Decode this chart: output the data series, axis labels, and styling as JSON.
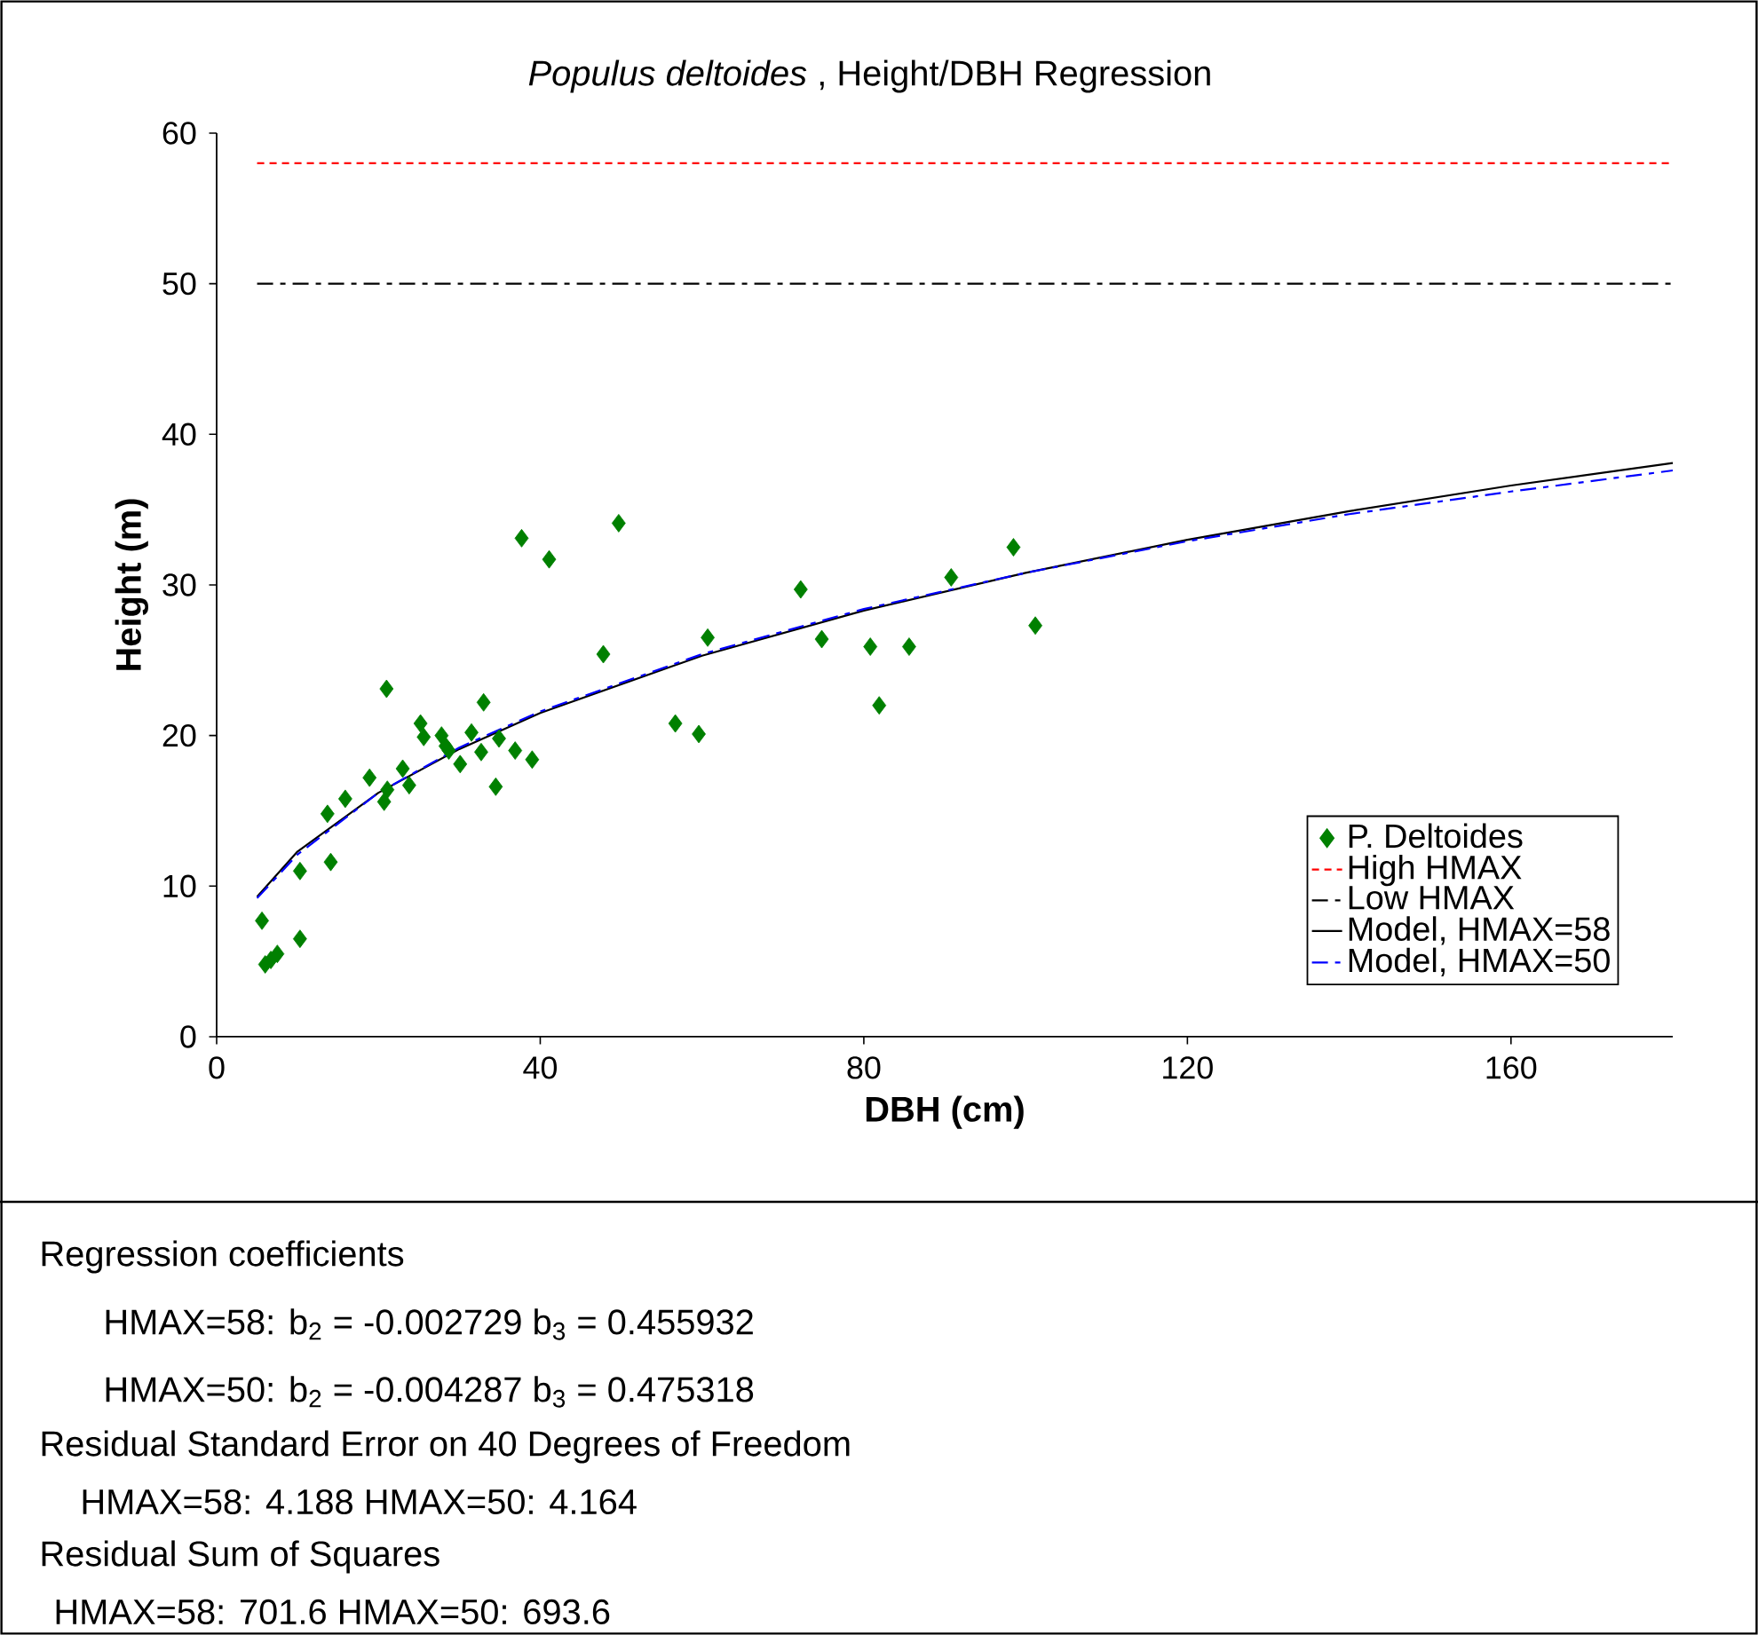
{
  "chart_data": {
    "type": "scatter",
    "title": "*Populus deltoides* , Height/DBH Regression",
    "xlabel": "DBH (cm)",
    "ylabel": "Height (m)",
    "xlim": [
      0,
      180
    ],
    "ylim": [
      0,
      60
    ],
    "xticks": [
      0,
      40,
      80,
      120,
      160
    ],
    "yticks": [
      0,
      10,
      20,
      30,
      40,
      50,
      60
    ],
    "grid": false,
    "legend": "bottom right",
    "series": [
      {
        "name": "P. Deltoides",
        "type": "scatter",
        "marker": "diamond",
        "color": "#008000",
        "x": [
          5.6,
          6.0,
          6.7,
          7.5,
          10.3,
          10.3,
          14.1,
          13.7,
          15.9,
          18.9,
          21.0,
          20.7,
          21.1,
          23.0,
          23.8,
          25.2,
          25.6,
          27.8,
          28.3,
          28.7,
          30.1,
          31.5,
          32.7,
          33.0,
          34.5,
          34.9,
          36.9,
          39.0,
          37.7,
          41.1,
          49.7,
          47.8,
          60.7,
          56.7,
          59.6,
          72.2,
          74.8,
          80.8,
          81.9,
          85.6,
          90.8,
          98.5,
          101.2
        ],
        "values": [
          7.7,
          4.8,
          5.1,
          5.5,
          6.5,
          11.0,
          11.6,
          14.8,
          15.8,
          17.2,
          23.1,
          15.6,
          16.4,
          17.8,
          16.7,
          20.8,
          19.9,
          20.0,
          19.3,
          19.0,
          18.1,
          20.2,
          18.9,
          22.2,
          16.6,
          19.8,
          19.0,
          18.4,
          33.1,
          31.7,
          34.1,
          25.4,
          26.5,
          20.8,
          20.1,
          29.7,
          26.4,
          25.9,
          22.0,
          25.9,
          30.5,
          32.5,
          27.3
        ]
      },
      {
        "name": "High HMAX",
        "type": "line",
        "line_style": "dotted",
        "color": "#ff0000",
        "x": [
          5,
          180
        ],
        "values": [
          58,
          58
        ]
      },
      {
        "name": "Low HMAX",
        "type": "line",
        "line_style": "dashed",
        "color": "#000000",
        "x": [
          5,
          180
        ],
        "values": [
          50,
          50
        ]
      },
      {
        "name": "Model, HMAX=58",
        "type": "line",
        "line_style": "solid",
        "color": "#000000",
        "x": [
          5,
          10,
          20,
          30,
          40,
          60,
          80,
          100,
          120,
          140,
          160,
          180
        ],
        "values": [
          9.3,
          12.3,
          16.2,
          19.1,
          21.5,
          25.3,
          28.3,
          30.8,
          33.0,
          34.9,
          36.6,
          38.1
        ]
      },
      {
        "name": "Model, HMAX=50",
        "type": "line",
        "line_style": "dashed",
        "color": "#0000ff",
        "x": [
          5,
          10,
          20,
          30,
          40,
          60,
          80,
          100,
          120,
          140,
          160,
          180
        ],
        "values": [
          9.2,
          12.1,
          16.2,
          19.2,
          21.6,
          25.4,
          28.4,
          30.8,
          32.9,
          34.7,
          36.2,
          37.6
        ]
      }
    ],
    "annotations": [
      "Regression coefficients",
      "HMAX=58: b$_{2}$ = -0.002729 b$_{3}$ = 0.455932",
      "HMAX=50: b$_{2}$ = -0.004287 b$_{3}$ = 0.475318",
      "Residual Standard Error on 40 Degrees of Freedom",
      "HMAX=58: 4.188 HMAX=50: 4.164",
      "Residual Sum of Squares",
      "HMAX=58: 701.6 HMAX=50: 693.6"
    ]
  }
}
